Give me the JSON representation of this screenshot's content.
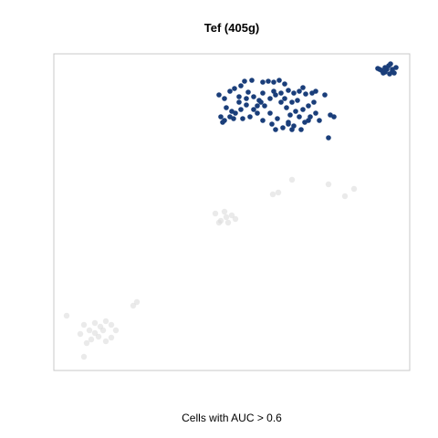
{
  "chart_data": {
    "type": "scatter",
    "title": "Tef (405g)",
    "xlabel": "",
    "ylabel": "",
    "caption": "Cells with AUC > 0.6",
    "axes_visible": false,
    "grid": false,
    "colors": {
      "highlight": "#1a3e7a",
      "background": "#d9d9d9",
      "frame": "#c8c8c8"
    },
    "series": [
      {
        "name": "",
        "role": "background",
        "points": [
          [
            73,
            346
          ],
          [
            92,
            356
          ],
          [
            98,
            362
          ],
          [
            104,
            354
          ],
          [
            110,
            358
          ],
          [
            116,
            352
          ],
          [
            122,
            356
          ],
          [
            127,
            362
          ],
          [
            100,
            372
          ],
          [
            108,
            369
          ],
          [
            116,
            374
          ],
          [
            122,
            370
          ],
          [
            88,
            366
          ],
          [
            95,
            376
          ],
          [
            104,
            365
          ],
          [
            113,
            362
          ],
          [
            92,
            391
          ],
          [
            150,
            331
          ],
          [
            146,
            335
          ],
          [
            236,
            234
          ],
          [
            242,
            242
          ],
          [
            248,
            238
          ],
          [
            254,
            236
          ],
          [
            258,
            240
          ],
          [
            240,
            244
          ],
          [
            246,
            232
          ],
          [
            250,
            244
          ],
          [
            299,
            213
          ],
          [
            305,
            211
          ],
          [
            320,
            197
          ],
          [
            360,
            202
          ],
          [
            378,
            215
          ],
          [
            388,
            207
          ]
        ]
      },
      {
        "name": "",
        "role": "highlighted",
        "points": [
          [
            240,
            104
          ],
          [
            246,
            108
          ],
          [
            252,
            100
          ],
          [
            257,
            97
          ],
          [
            264,
            94
          ],
          [
            272,
            101
          ],
          [
            276,
            88
          ],
          [
            268,
            89
          ],
          [
            288,
            90
          ],
          [
            294,
            89
          ],
          [
            300,
            90
          ],
          [
            306,
            88
          ],
          [
            312,
            92
          ],
          [
            316,
            99
          ],
          [
            322,
            102
          ],
          [
            328,
            100
          ],
          [
            335,
            103
          ],
          [
            342,
            102
          ],
          [
            346,
            100
          ],
          [
            356,
            104
          ],
          [
            248,
            118
          ],
          [
            254,
            122
          ],
          [
            262,
            112
          ],
          [
            270,
            115
          ],
          [
            278,
            120
          ],
          [
            284,
            110
          ],
          [
            290,
            116
          ],
          [
            296,
            108
          ],
          [
            302,
            104
          ],
          [
            308,
            112
          ],
          [
            314,
            118
          ],
          [
            320,
            112
          ],
          [
            326,
            110
          ],
          [
            332,
            120
          ],
          [
            338,
            116
          ],
          [
            344,
            112
          ],
          [
            246,
            132
          ],
          [
            252,
            128
          ],
          [
            258,
            124
          ],
          [
            266,
            130
          ],
          [
            274,
            128
          ],
          [
            282,
            124
          ],
          [
            288,
            132
          ],
          [
            298,
            136
          ],
          [
            304,
            130
          ],
          [
            310,
            140
          ],
          [
            316,
            134
          ],
          [
            322,
            138
          ],
          [
            328,
            128
          ],
          [
            334,
            134
          ],
          [
            340,
            128
          ],
          [
            346,
            124
          ],
          [
            242,
            128
          ],
          [
            244,
            134
          ],
          [
            256,
            130
          ],
          [
            262,
            106
          ],
          [
            278,
            106
          ],
          [
            286,
            112
          ],
          [
            300,
            100
          ],
          [
            308,
            102
          ],
          [
            318,
            126
          ],
          [
            324,
            122
          ],
          [
            330,
            142
          ],
          [
            338,
            132
          ],
          [
            264,
            120
          ],
          [
            270,
            108
          ],
          [
            296,
            124
          ],
          [
            302,
            142
          ],
          [
            312,
            108
          ],
          [
            320,
            142
          ],
          [
            362,
            126
          ],
          [
            366,
            128
          ],
          [
            360,
            151
          ],
          [
            350,
            132
          ],
          [
            288,
            102
          ],
          [
            316,
            136
          ],
          [
            332,
            96
          ],
          [
            282,
            116
          ],
          [
            414,
            75
          ],
          [
            418,
            77
          ],
          [
            422,
            79
          ],
          [
            426,
            72
          ],
          [
            430,
            76
          ],
          [
            434,
            74
          ],
          [
            427,
            81
          ],
          [
            420,
            80
          ],
          [
            432,
            80
          ],
          [
            424,
            76
          ],
          [
            428,
            70
          ],
          [
            416,
            76
          ],
          [
            430,
            78
          ],
          [
            422,
            74
          ]
        ]
      }
    ]
  }
}
